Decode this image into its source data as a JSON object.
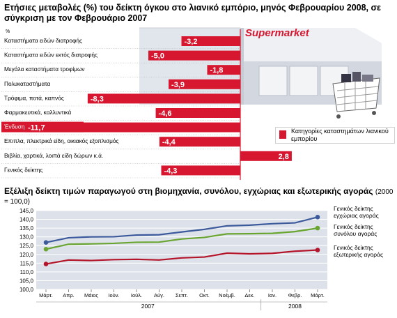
{
  "header": {
    "title": "Ετήσιες μεταβολές (%) του δείκτη όγκου στο λιανικό εμπόριο, μηνός Φεβρουαρίου 2008, σε σύγκριση με τον Φεβρουάριο 2007",
    "supermarket_sign": "Supermarket"
  },
  "bar_legend": "Κατηγορίες καταστημάτων λιανικού εμπορίου",
  "line_header": {
    "title": "Εξέλιξη δείκτη τιμών παραγωγού στη βιομηχανία, συνόλου, εγχώριας και εξωτερικής αγοράς",
    "unit": "(2000 = 100,0)"
  },
  "colors": {
    "red": "#d7172f",
    "blue": "#3c5a9c",
    "green": "#6aa532",
    "dark_red": "#b5152b",
    "panel": "#dde2ea"
  },
  "chart_data": [
    {
      "type": "bar",
      "orientation": "horizontal",
      "ylabel": "%",
      "categories": [
        "Καταστήματα ειδών διατροφής",
        "Καταστήματα ειδών εκτός διατροφής",
        "Μεγάλα καταστήματα τροφίμων",
        "Πολυκαταστήματα",
        "Τρόφιμα, ποτά, καπνός",
        "Φαρμακευτικά, καλλυντικά",
        "Ένδυση - υπόδηση",
        "Επιπλα, πλεκτρικά είδη, οικιακός εξοπλισμός",
        "Βιβλία, χαρτικά, λοιπά είδη δώρων κ.ά.",
        "Γενικός δείκτης"
      ],
      "value_labels": [
        "-3,2",
        "-5,0",
        "-1,8",
        "-3,9",
        "-8,3",
        "-4,6",
        "-11,7",
        "-4,4",
        "2,8",
        "-4,3"
      ],
      "values": [
        -3.2,
        -5.0,
        -1.8,
        -3.9,
        -8.3,
        -4.6,
        -11.7,
        -4.4,
        2.8,
        -4.3
      ],
      "highlighted": "Ένδυση - υπόδηση"
    },
    {
      "type": "line",
      "x": [
        "Μάρτ.",
        "Απρ.",
        "Μάιος",
        "Ιούν.",
        "Ιούλ.",
        "Αύγ.",
        "Σεπτ.",
        "Οκτ.",
        "Νοέμβ.",
        "Δεκ.",
        "Ιαν.",
        "Φεβρ.",
        "Μάρτ."
      ],
      "year_labels": [
        "2007",
        "2008"
      ],
      "ylim": [
        100,
        145
      ],
      "yticks": [
        "100,0",
        "105,0",
        "110,0",
        "115,0",
        "120,0",
        "125,0",
        "130,0",
        "135,0",
        "140,0",
        "145,0"
      ],
      "grid": true,
      "series": [
        {
          "name": "Γενικός δείκτης εγχώριας αγοράς",
          "color": "#3c5a9c",
          "values": [
            126.8,
            129.5,
            130.0,
            130.1,
            131.0,
            131.2,
            132.8,
            134.3,
            136.3,
            136.7,
            137.5,
            138.0,
            141.3
          ]
        },
        {
          "name": "Γενικός δείκτης συνόλου αγοράς",
          "color": "#6aa532",
          "values": [
            123.0,
            125.8,
            126.0,
            126.3,
            126.9,
            127.0,
            128.8,
            129.7,
            131.7,
            131.8,
            132.0,
            133.0,
            135.0
          ]
        },
        {
          "name": "Γενικός δείκτης εξωτερικής αγοράς",
          "color": "#b5152b",
          "values": [
            114.5,
            116.8,
            116.5,
            117.0,
            117.2,
            116.8,
            118.0,
            118.5,
            120.7,
            120.3,
            120.6,
            121.8,
            122.5
          ]
        }
      ]
    }
  ]
}
